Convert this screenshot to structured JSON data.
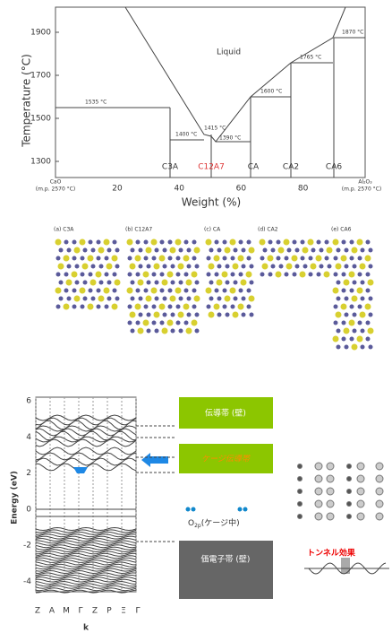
{
  "phase_diagram": {
    "y_axis_label": "Temperature (°C)",
    "y_ticks": [
      "1900",
      "1700",
      "1500",
      "1300"
    ],
    "x_axis_label": "Weight (%)",
    "x_ticks": [
      "20",
      "40",
      "60",
      "80"
    ],
    "left_end": {
      "label": "CaO",
      "note": "(m.p. 2570 °C)"
    },
    "right_end": {
      "label": "Al₂O₃",
      "note": "(m.p. 2570 °C)"
    },
    "liquid": "Liquid",
    "phases": [
      "C3A",
      "C12A7",
      "CA",
      "CA2",
      "CA6"
    ],
    "temperatures": [
      "1535 °C",
      "1400 °C",
      "1415 °C",
      "1390 °C",
      "1600 °C",
      "1765 °C",
      "1870 °C"
    ]
  },
  "structures": [
    "(a) C3A",
    "(b) C12A7",
    "(c) CA",
    "(d) CA2",
    "(e) CA6"
  ],
  "band_structure": {
    "y_axis_label": "Energy (eV)",
    "y_ticks": [
      "6",
      "4",
      "2",
      "0",
      "-2",
      "-4"
    ],
    "k_points": [
      "Z",
      "A",
      "M",
      "Γ",
      "Z",
      "P",
      "Ξ",
      "Γ"
    ],
    "x_axis_label": "k"
  },
  "bands": {
    "conduction": "伝導帯 (壁)",
    "cage": "ケージ伝導帯",
    "o2p": {
      "symbol": "O",
      "subscript": "2p",
      "note": "(ケージ中)"
    },
    "valence": "価電子帯 (壁)",
    "tunnel": "トンネル効果"
  }
}
